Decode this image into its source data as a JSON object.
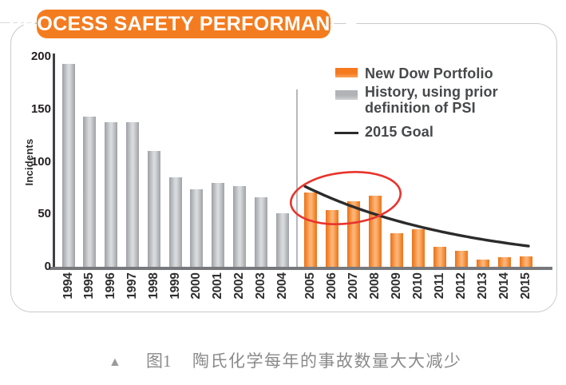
{
  "panel": {
    "title": "PROCESS SAFETY PERFORMANCE"
  },
  "chart_data": {
    "type": "bar",
    "title": "PROCESS SAFETY PERFORMANCE",
    "xlabel": "",
    "ylabel": "Incidents",
    "ylim": [
      0,
      200
    ],
    "yticks": [
      0,
      50,
      100,
      150,
      200
    ],
    "grid": false,
    "legend_position": "top-right",
    "series": [
      {
        "name": "History, using prior definition of PSI",
        "color": "#a9abae",
        "categories": [
          "1994",
          "1995",
          "1996",
          "1997",
          "1998",
          "1999",
          "2000",
          "2001",
          "2002",
          "2003",
          "2004"
        ],
        "values": [
          193,
          143,
          138,
          138,
          110,
          85,
          74,
          80,
          77,
          66,
          51
        ]
      },
      {
        "name": "New Dow Portfolio",
        "color": "#f47d21",
        "categories": [
          "2005",
          "2006",
          "2007",
          "2008",
          "2009",
          "2010",
          "2011",
          "2012",
          "2013",
          "2014",
          "2015"
        ],
        "values": [
          71,
          54,
          62,
          68,
          32,
          36,
          19,
          15,
          7,
          9,
          10
        ]
      }
    ],
    "goal_line": {
      "name": "2015 Goal",
      "shape": "exponential-decay",
      "start_year": "2005",
      "end_year": "2015",
      "start_value": 74,
      "end_value": 20
    },
    "annotation": {
      "shape": "ellipse",
      "color": "#e8342c",
      "highlighted_years": [
        "2005",
        "2006",
        "2007",
        "2008"
      ]
    },
    "legend": [
      {
        "swatch": "orange-bar",
        "label": "New Dow Portfolio"
      },
      {
        "swatch": "gray-bar",
        "label": "History, using prior definition of PSI"
      },
      {
        "swatch": "line",
        "label": "2015 Goal"
      }
    ]
  },
  "caption": {
    "marker": "▲",
    "figure_label": "图1",
    "text": "陶氏化学每年的事故数量大大减少"
  },
  "colors": {
    "accent_orange": "#f47c20",
    "history_gray": "#a9abae",
    "goal_line_black": "#2b2b2b",
    "annotation_red": "#e8342c",
    "caption_gray": "#8a8a8a"
  }
}
